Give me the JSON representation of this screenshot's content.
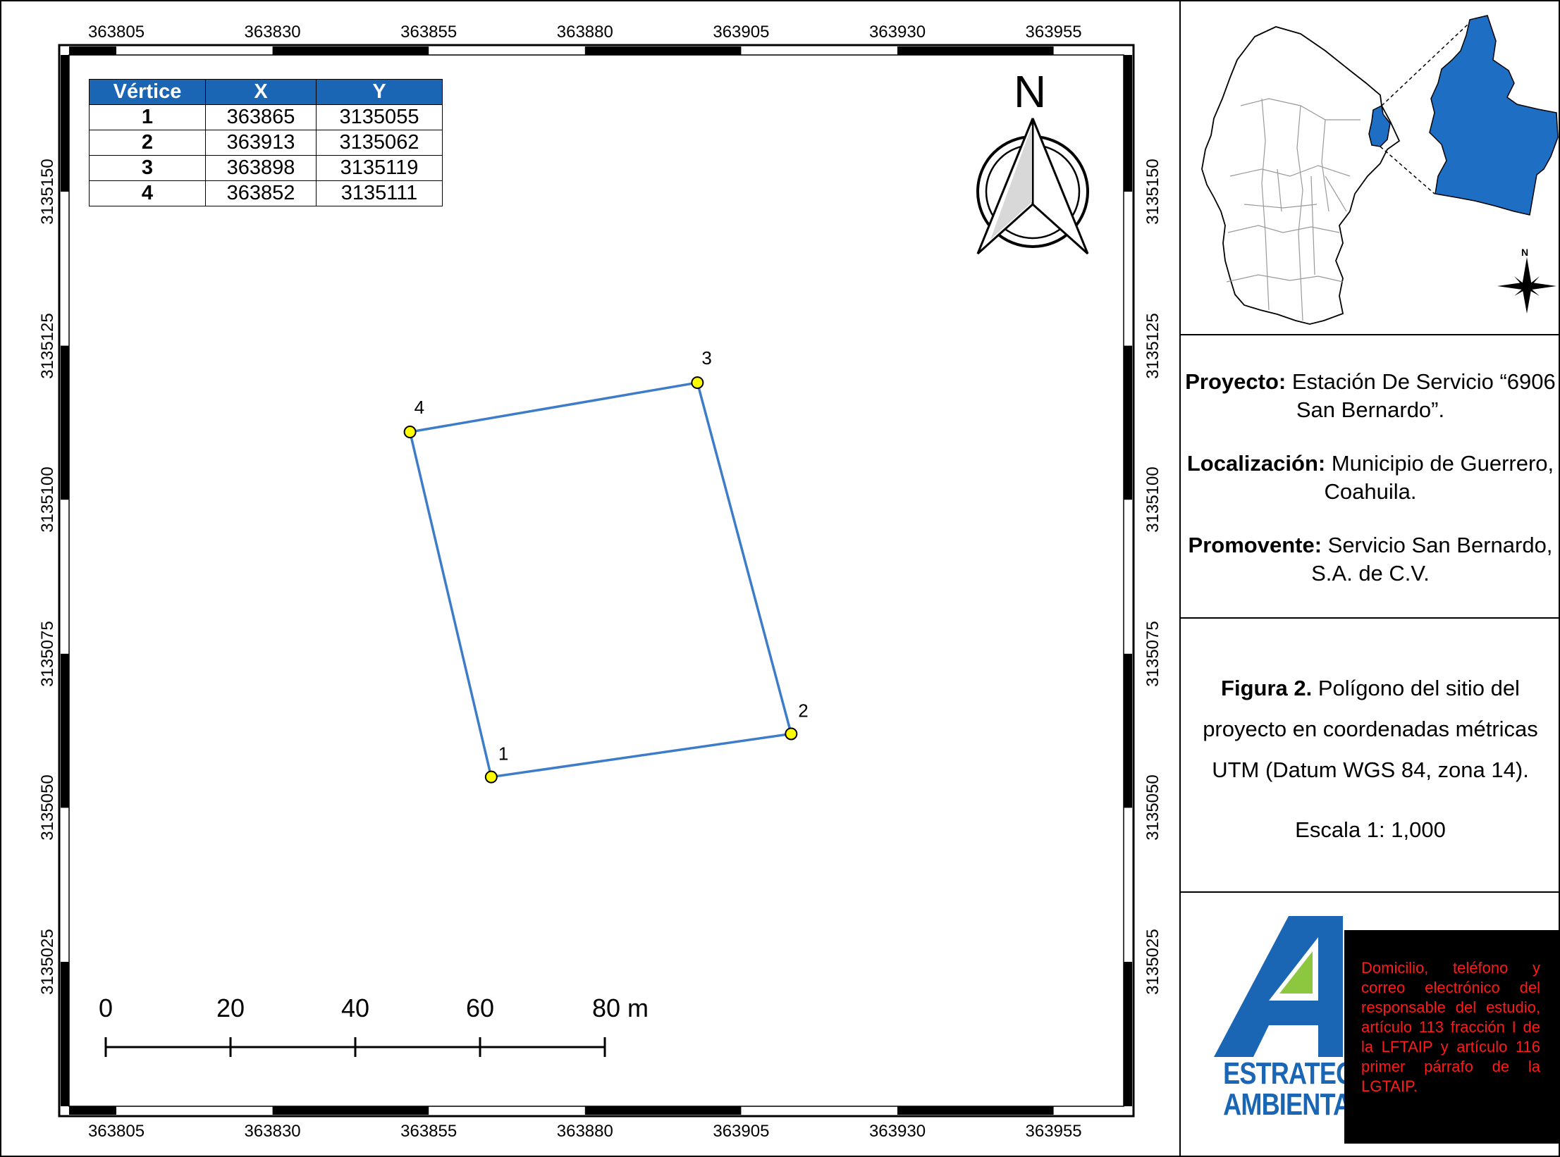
{
  "map": {
    "x_ticks": [
      "363805",
      "363830",
      "363855",
      "363880",
      "363905",
      "363930",
      "363955"
    ],
    "y_ticks": [
      "3135150",
      "3135125",
      "3135100",
      "3135075",
      "3135050",
      "3135025"
    ],
    "polygon_vertices": [
      {
        "label": "1",
        "x": 363865,
        "y": 3135055
      },
      {
        "label": "2",
        "x": 363913,
        "y": 3135062
      },
      {
        "label": "3",
        "x": 363898,
        "y": 3135119
      },
      {
        "label": "4",
        "x": 363852,
        "y": 3135111
      }
    ],
    "polygon_color": "#3d7cc9",
    "vertex_color": "#ffff00",
    "north_label": "N",
    "scale_bar_labels": [
      "0",
      "20",
      "40",
      "60",
      "80 m"
    ]
  },
  "table": {
    "headers": [
      "Vértice",
      "X",
      "Y"
    ],
    "rows": [
      [
        "1",
        "363865",
        "3135055"
      ],
      [
        "2",
        "363913",
        "3135062"
      ],
      [
        "3",
        "363898",
        "3135119"
      ],
      [
        "4",
        "363852",
        "3135111"
      ]
    ],
    "header_color": "#1a66b5"
  },
  "inset": {
    "north_label": "N",
    "highlight_color": "#1e6fc4"
  },
  "info": {
    "project_label": "Proyecto:",
    "project_value": " Estación De Servicio “6906 San Bernardo”.",
    "location_label": "Localización:",
    "location_value": " Municipio de Guerrero, Coahuila.",
    "promoter_label": "Promovente:",
    "promoter_value": " Servicio San Bernardo, S.A. de C.V.",
    "figure_label": "Figura 2.",
    "figure_value": " Polígono del sitio del proyecto en coordenadas métricas UTM (Datum WGS 84, zona 14).",
    "scale_text": "Escala 1: 1,000"
  },
  "logo": {
    "line1": "ESTRATEGIA",
    "line2": "AMBIENTAL",
    "blue": "#1a66b5",
    "green": "#8dc63f"
  },
  "notice": {
    "text": "Domicilio, teléfono y correo electrónico del responsable del estudio, artículo 113 fracción I de la LFTAIP y artículo 116 primer párrafo de la LGTAIP."
  }
}
